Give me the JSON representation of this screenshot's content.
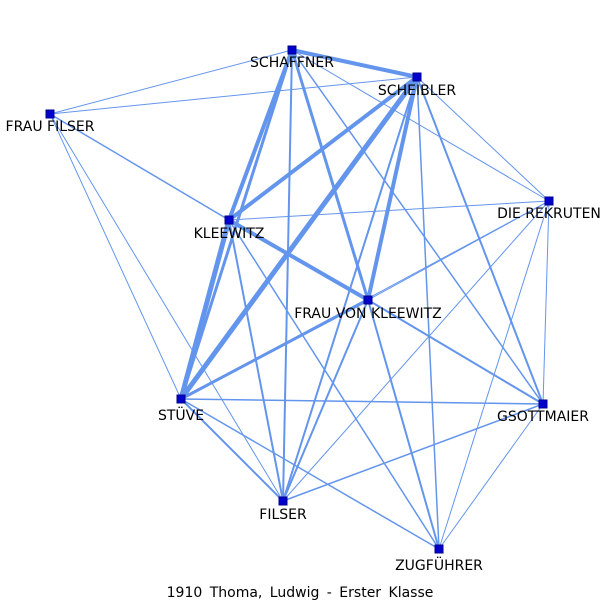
{
  "caption": "1910 Thoma, Ludwig - Erster Klasse",
  "colors": {
    "edge": "#6495ed",
    "node_fill": "#0000cd",
    "node_stroke": "#00008b",
    "label": "#000000"
  },
  "nodes": [
    {
      "id": "schaffner",
      "label": "SCHAFFNER"
    },
    {
      "id": "scheibler",
      "label": "SCHEIBLER"
    },
    {
      "id": "frau_filser",
      "label": "FRAU FILSER"
    },
    {
      "id": "die_rekruten",
      "label": "DIE REKRUTEN"
    },
    {
      "id": "kleewitz",
      "label": "KLEEWITZ"
    },
    {
      "id": "frau_von_kleewitz",
      "label": "FRAU VON KLEEWITZ"
    },
    {
      "id": "stuve",
      "label": "STÜVE"
    },
    {
      "id": "gsottmaier",
      "label": "GSOTTMAIER"
    },
    {
      "id": "filser",
      "label": "FILSER"
    },
    {
      "id": "zugfuhrer",
      "label": "ZUGFÜHRER"
    }
  ],
  "edges": [
    {
      "source": "schaffner",
      "target": "scheibler",
      "weight": 4
    },
    {
      "source": "schaffner",
      "target": "kleewitz",
      "weight": 4
    },
    {
      "source": "schaffner",
      "target": "stuve",
      "weight": 3
    },
    {
      "source": "schaffner",
      "target": "frau_von_kleewitz",
      "weight": 3
    },
    {
      "source": "schaffner",
      "target": "filser",
      "weight": 2
    },
    {
      "source": "schaffner",
      "target": "gsottmaier",
      "weight": 1.5
    },
    {
      "source": "schaffner",
      "target": "frau_filser",
      "weight": 1
    },
    {
      "source": "schaffner",
      "target": "die_rekruten",
      "weight": 1
    },
    {
      "source": "scheibler",
      "target": "kleewitz",
      "weight": 4
    },
    {
      "source": "scheibler",
      "target": "stuve",
      "weight": 5
    },
    {
      "source": "scheibler",
      "target": "frau_von_kleewitz",
      "weight": 4
    },
    {
      "source": "scheibler",
      "target": "filser",
      "weight": 2
    },
    {
      "source": "scheibler",
      "target": "gsottmaier",
      "weight": 2
    },
    {
      "source": "scheibler",
      "target": "zugfuhrer",
      "weight": 1.5
    },
    {
      "source": "scheibler",
      "target": "frau_filser",
      "weight": 1
    },
    {
      "source": "scheibler",
      "target": "die_rekruten",
      "weight": 1
    },
    {
      "source": "kleewitz",
      "target": "stuve",
      "weight": 5
    },
    {
      "source": "kleewitz",
      "target": "frau_von_kleewitz",
      "weight": 4
    },
    {
      "source": "kleewitz",
      "target": "filser",
      "weight": 2
    },
    {
      "source": "kleewitz",
      "target": "zugfuhrer",
      "weight": 1.5
    },
    {
      "source": "kleewitz",
      "target": "frau_filser",
      "weight": 1.5
    },
    {
      "source": "kleewitz",
      "target": "die_rekruten",
      "weight": 1
    },
    {
      "source": "frau_von_kleewitz",
      "target": "stuve",
      "weight": 3
    },
    {
      "source": "frau_von_kleewitz",
      "target": "filser",
      "weight": 2
    },
    {
      "source": "frau_von_kleewitz",
      "target": "gsottmaier",
      "weight": 2
    },
    {
      "source": "frau_von_kleewitz",
      "target": "zugfuhrer",
      "weight": 2
    },
    {
      "source": "frau_von_kleewitz",
      "target": "die_rekruten",
      "weight": 1
    },
    {
      "source": "stuve",
      "target": "gsottmaier",
      "weight": 1.5
    },
    {
      "source": "stuve",
      "target": "filser",
      "weight": 2
    },
    {
      "source": "stuve",
      "target": "zugfuhrer",
      "weight": 1.5
    },
    {
      "source": "stuve",
      "target": "die_rekruten",
      "weight": 1
    },
    {
      "source": "frau_filser",
      "target": "stuve",
      "weight": 1
    },
    {
      "source": "frau_filser",
      "target": "filser",
      "weight": 1
    },
    {
      "source": "filser",
      "target": "gsottmaier",
      "weight": 1.5
    },
    {
      "source": "filser",
      "target": "die_rekruten",
      "weight": 1
    },
    {
      "source": "die_rekruten",
      "target": "gsottmaier",
      "weight": 1
    },
    {
      "source": "die_rekruten",
      "target": "zugfuhrer",
      "weight": 1
    },
    {
      "source": "gsottmaier",
      "target": "zugfuhrer",
      "weight": 1
    }
  ]
}
